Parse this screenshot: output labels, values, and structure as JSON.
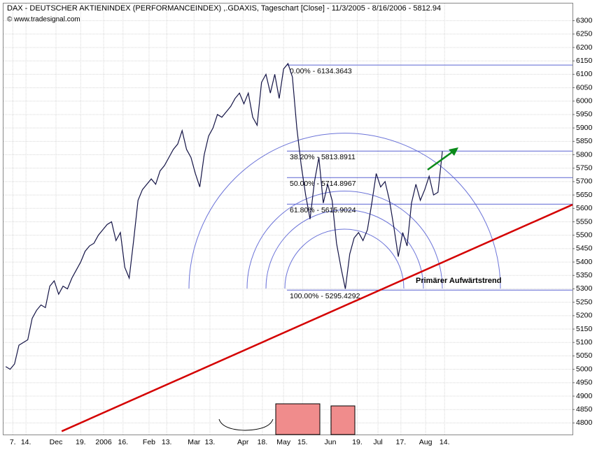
{
  "chart_data": {
    "type": "line",
    "title": "DAX - DEUTSCHER AKTIENINDEX (PERFORMANCEINDEX) ,.GDAXIS, Tageschart [Close] - 11/3/2005 - 8/16/2006 - 5812.94",
    "subtitle": "© www.tradesignal.com",
    "color": "#141446",
    "values": [
      5010,
      5000,
      5020,
      5090,
      5100,
      5110,
      5190,
      5220,
      5240,
      5230,
      5310,
      5330,
      5280,
      5310,
      5300,
      5340,
      5370,
      5400,
      5440,
      5460,
      5470,
      5500,
      5520,
      5540,
      5550,
      5480,
      5510,
      5380,
      5340,
      5480,
      5630,
      5670,
      5690,
      5710,
      5690,
      5740,
      5760,
      5790,
      5820,
      5840,
      5890,
      5820,
      5790,
      5730,
      5680,
      5800,
      5870,
      5900,
      5950,
      5940,
      5960,
      5980,
      6010,
      6030,
      5990,
      6030,
      5940,
      5910,
      6070,
      6100,
      6030,
      6100,
      6010,
      6120,
      6140,
      6090,
      5900,
      5760,
      5650,
      5560,
      5700,
      5790,
      5620,
      5690,
      5630,
      5470,
      5380,
      5300,
      5430,
      5490,
      5510,
      5480,
      5520,
      5620,
      5730,
      5680,
      5700,
      5630,
      5530,
      5420,
      5510,
      5460,
      5620,
      5690,
      5630,
      5670,
      5720,
      5650,
      5660,
      5812.94
    ],
    "xlim": [
      -0.5,
      128.5
    ],
    "xticks": [
      {
        "value": 1.6,
        "label": "7."
      },
      {
        "value": 4.6,
        "label": "14."
      },
      {
        "value": 11.4,
        "label": "Dec"
      },
      {
        "value": 17,
        "label": "19."
      },
      {
        "value": 22.2,
        "label": "2006"
      },
      {
        "value": 26.6,
        "label": "16."
      },
      {
        "value": 32.5,
        "label": "Feb"
      },
      {
        "value": 36.5,
        "label": "13."
      },
      {
        "value": 42.7,
        "label": "Mar"
      },
      {
        "value": 46.3,
        "label": "13."
      },
      {
        "value": 53.8,
        "label": "Apr"
      },
      {
        "value": 58.2,
        "label": "18."
      },
      {
        "value": 63,
        "label": "May"
      },
      {
        "value": 67.3,
        "label": "15."
      },
      {
        "value": 73.6,
        "label": "Jun"
      },
      {
        "value": 79.7,
        "label": "19."
      },
      {
        "value": 84.4,
        "label": "Jul"
      },
      {
        "value": 89.6,
        "label": "17."
      },
      {
        "value": 95.2,
        "label": "Aug"
      },
      {
        "value": 99.5,
        "label": "14."
      }
    ],
    "ylim": [
      4775,
      6325
    ],
    "yticks": [
      4800,
      4850,
      4900,
      4950,
      5000,
      5050,
      5100,
      5150,
      5200,
      5250,
      5300,
      5350,
      5400,
      5450,
      5500,
      5550,
      5600,
      5650,
      5700,
      5750,
      5800,
      5850,
      5900,
      5950,
      6000,
      6050,
      6100,
      6150,
      6200,
      6250,
      6300
    ],
    "grid": true,
    "fibonacci": {
      "color": "#5a64d2",
      "levels": [
        {
          "value": 6134.3643,
          "label": "0.00% - 6134.3643"
        },
        {
          "value": 5813.8911,
          "label": "38.20% - 5813.8911"
        },
        {
          "value": 5714.8967,
          "label": "50.00% - 5714.8967"
        },
        {
          "value": 5615.9024,
          "label": "61.80% - 5615.9024"
        },
        {
          "value": 5295.4292,
          "label": "100.00% - 5295.4292"
        }
      ]
    },
    "trendline": {
      "label": "Primärer Aufwärtstrend",
      "color": "#d40000",
      "x": [
        12.7,
        128.5
      ],
      "values": [
        4769,
        5614
      ]
    }
  }
}
